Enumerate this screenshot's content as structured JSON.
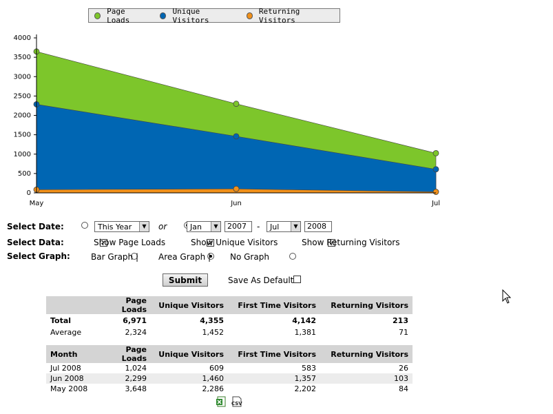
{
  "legend": {
    "items": [
      {
        "label": "Page Loads",
        "color": "#7dc62b"
      },
      {
        "label": "Unique Visitors",
        "color": "#0066b3"
      },
      {
        "label": "Returning Visitors",
        "color": "#f0901a"
      }
    ]
  },
  "chart_data": {
    "type": "area",
    "categories": [
      "May",
      "Jun",
      "Jul"
    ],
    "ylim": [
      0,
      4000
    ],
    "yticks": [
      "0",
      "500",
      "1000",
      "1500",
      "2000",
      "2500",
      "3000",
      "3500",
      "4000"
    ],
    "series": [
      {
        "name": "Page Loads",
        "color": "#7dc62b",
        "values": [
          3648,
          2299,
          1024
        ]
      },
      {
        "name": "Unique Visitors",
        "color": "#0066b3",
        "values": [
          2286,
          1460,
          609
        ]
      },
      {
        "name": "Returning Visitors",
        "color": "#f0901a",
        "values": [
          84,
          103,
          26
        ]
      }
    ]
  },
  "form": {
    "select_date_label": "Select Date:",
    "preset_value": "This Year",
    "or_text": "or",
    "from_month": "Jan",
    "from_year": "2007",
    "dash": "-",
    "to_month": "Jul",
    "to_year": "2008",
    "select_data_label": "Select Data:",
    "show_page_loads": "Show Page Loads",
    "show_unique": "Show Unique Visitors",
    "show_returning": "Show Returning Visitors",
    "select_graph_label": "Select Graph:",
    "bar_graph": "Bar Graph |",
    "area_graph": "Area Graph |",
    "no_graph": "No Graph",
    "submit": "Submit",
    "save_default": "Save As Default"
  },
  "summary": {
    "headers": [
      "",
      "Page Loads",
      "Unique Visitors",
      "First Time Visitors",
      "Returning Visitors"
    ],
    "rows": [
      [
        "Total",
        "6,971",
        "4,355",
        "4,142",
        "213"
      ],
      [
        "Average",
        "2,324",
        "1,452",
        "1,381",
        "71"
      ]
    ]
  },
  "monthly": {
    "headers": [
      "Month",
      "Page Loads",
      "Unique Visitors",
      "First Time Visitors",
      "Returning Visitors"
    ],
    "rows": [
      [
        "Jul 2008",
        "1,024",
        "609",
        "583",
        "26"
      ],
      [
        "Jun 2008",
        "2,299",
        "1,460",
        "1,357",
        "103"
      ],
      [
        "May 2008",
        "3,648",
        "2,286",
        "2,202",
        "84"
      ]
    ]
  },
  "export": {
    "excel_icon": "excel-icon",
    "csv_icon": "csv-icon",
    "csv_text": "CSV"
  }
}
